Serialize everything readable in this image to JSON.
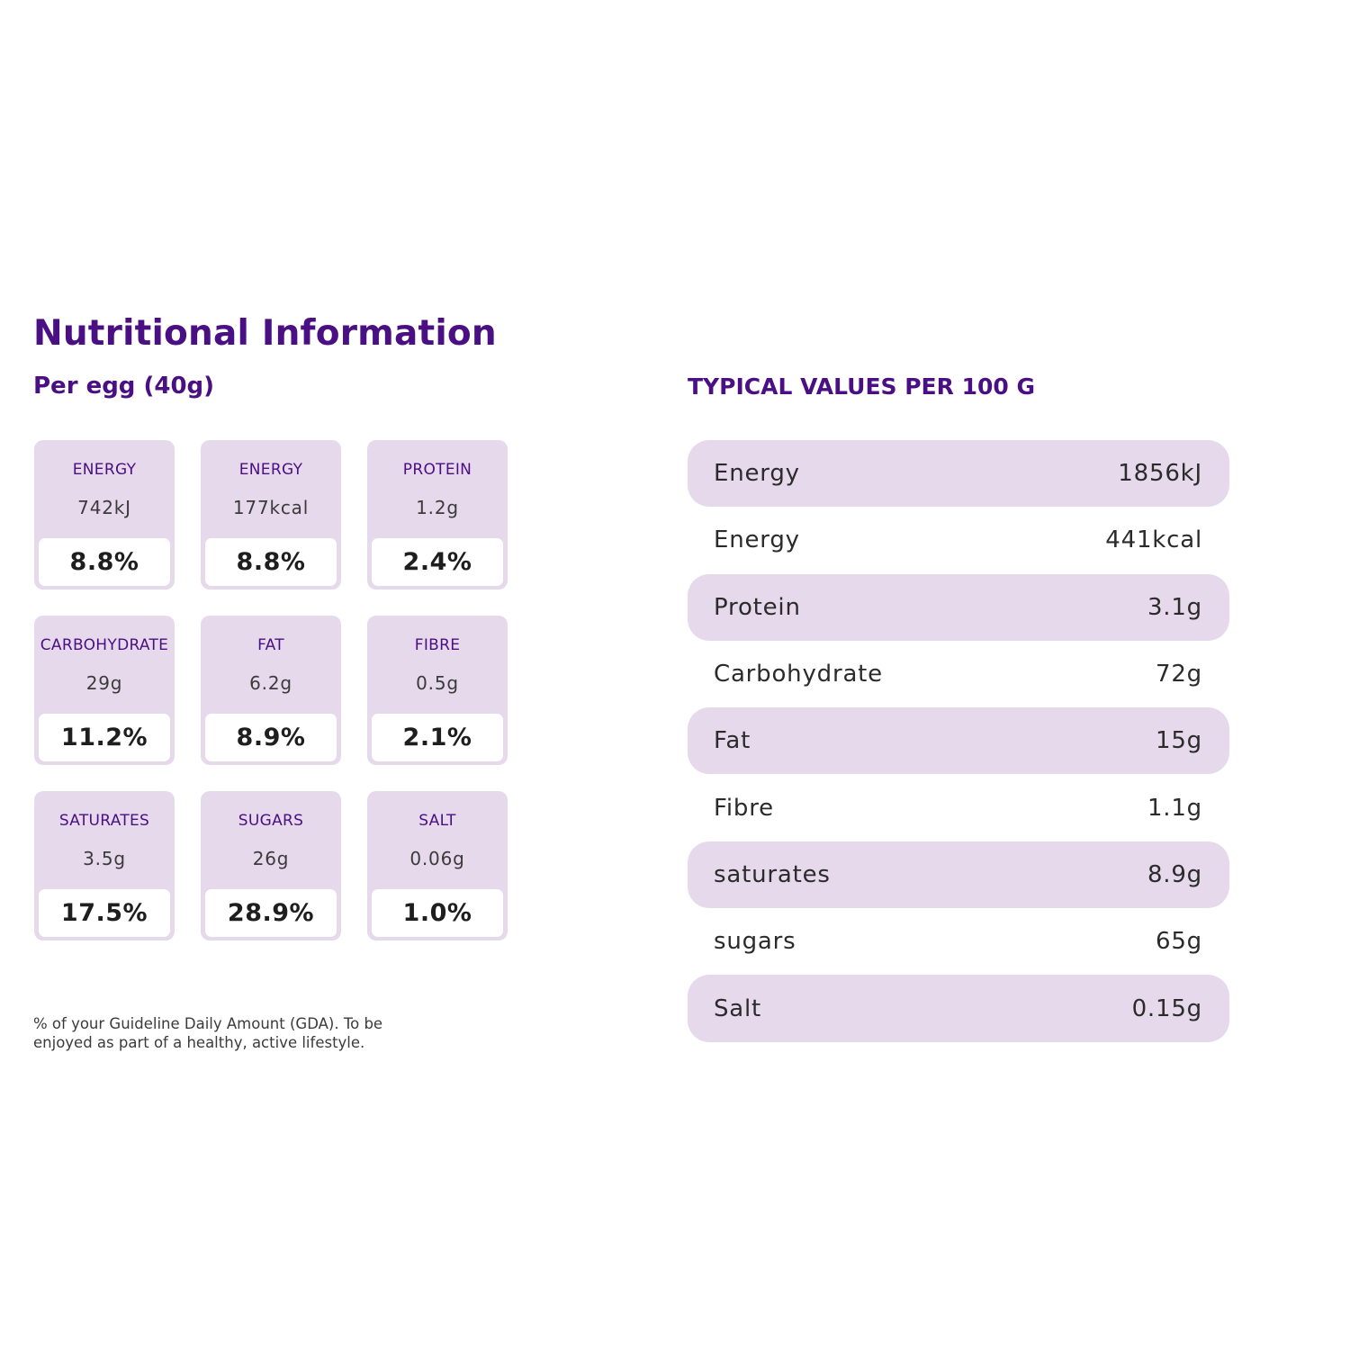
{
  "title": "Nutritional Information",
  "per_egg": {
    "heading": "Per egg (40g)",
    "cards": [
      {
        "label": "ENERGY",
        "amount": "742kJ",
        "pct": "8.8%"
      },
      {
        "label": "ENERGY",
        "amount": "177kcal",
        "pct": "8.8%"
      },
      {
        "label": "PROTEIN",
        "amount": "1.2g",
        "pct": "2.4%"
      },
      {
        "label": "CARBOHYDRATE",
        "amount": "29g",
        "pct": "11.2%"
      },
      {
        "label": "FAT",
        "amount": "6.2g",
        "pct": "8.9%"
      },
      {
        "label": "FIBRE",
        "amount": "0.5g",
        "pct": "2.1%"
      },
      {
        "label": "SATURATES",
        "amount": "3.5g",
        "pct": "17.5%"
      },
      {
        "label": "SUGARS",
        "amount": "26g",
        "pct": "28.9%"
      },
      {
        "label": "SALT",
        "amount": "0.06g",
        "pct": "1.0%"
      }
    ],
    "footnote": "% of your Guideline Daily Amount (GDA). To be enjoyed as part of a healthy, active lifestyle."
  },
  "typical": {
    "heading": "TYPICAL VALUES PER 100 G",
    "rows": [
      {
        "name": "Energy",
        "value": "1856kJ"
      },
      {
        "name": "Energy",
        "value": "441kcal"
      },
      {
        "name": "Protein",
        "value": "3.1g"
      },
      {
        "name": "Carbohydrate",
        "value": "72g"
      },
      {
        "name": "Fat",
        "value": "15g"
      },
      {
        "name": "Fibre",
        "value": "1.1g"
      },
      {
        "name": "saturates",
        "value": "8.9g"
      },
      {
        "name": "sugars",
        "value": "65g"
      },
      {
        "name": "Salt",
        "value": "0.15g"
      }
    ]
  },
  "colors": {
    "accent": "#4a0f82",
    "card_bg": "#e6d9ec",
    "text": "#2b2b2b"
  }
}
